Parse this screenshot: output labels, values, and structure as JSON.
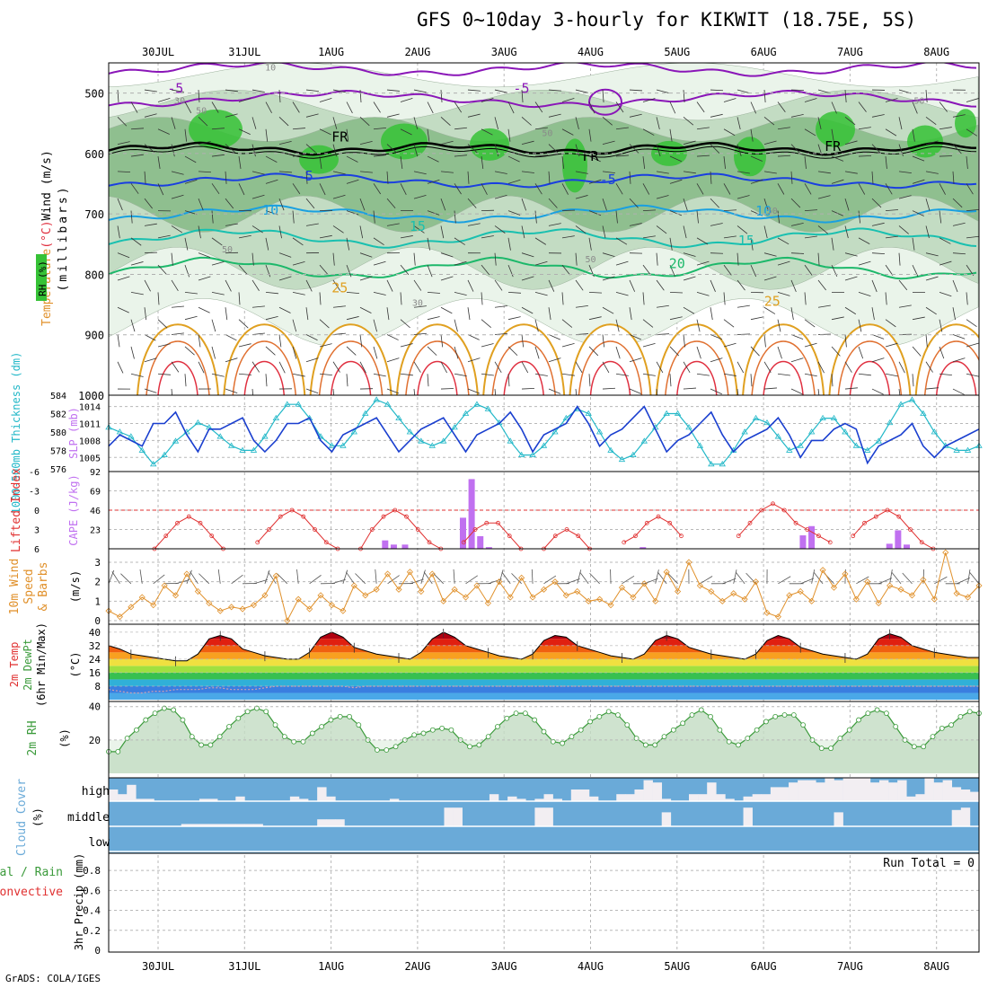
{
  "title": "GFS 0~10day 3-hourly for KIKWIT (18.75E, 5S)",
  "credit": "GrADS: COLA/IGES",
  "colors": {
    "temp_cold": "#8a16b8",
    "temp_5": "#1a3fe0",
    "temp_10": "#1aa0e0",
    "temp_15": "#19c0b0",
    "temp_20": "#1cb86a",
    "temp_25": "#e0a020",
    "temp_warm": "#e03040",
    "rh_light": "#eaf4ea",
    "rh_mid": "#c3dcc3",
    "rh_dark": "#8fbf8f",
    "rh_bright": "#36c236",
    "slp": "#1a3fcf",
    "thickness": "#22b8c8",
    "cape": "#c070f0",
    "lifted": "#e03030",
    "wind10": "#e0902a",
    "rh2m": "#3a9a3a",
    "cloud_bg": "#6aaad8",
    "cloud_bar": "#f2eef2"
  },
  "chart_data": [
    {
      "id": "pressure-panel",
      "type": "contour",
      "ylabel_parts": [
        {
          "text": "Wind (m/s)",
          "color": "#000000"
        },
        {
          "text": "(°C)",
          "color": "#e03040"
        },
        {
          "text": "Temperature",
          "color": "#e0902a"
        }
      ],
      "ylabel2": "(millibars)",
      "rh_legend": "RH (%)",
      "y_ticks": [
        500,
        600,
        700,
        800,
        900,
        1000
      ],
      "ylim": [
        1000,
        450
      ],
      "x_days": [
        "30JUL",
        "31JUL",
        "1AUG",
        "2AUG",
        "3AUG",
        "4AUG",
        "5AUG",
        "6AUG",
        "7AUG",
        "8AUG"
      ],
      "contour_labels": [
        {
          "text": "-5",
          "x": 0.2,
          "p": 500,
          "color": "temp_cold"
        },
        {
          "text": "-5",
          "x": 4.2,
          "p": 500,
          "color": "temp_cold"
        },
        {
          "text": "FR",
          "x": 2.1,
          "p": 580,
          "color": "black"
        },
        {
          "text": "FR",
          "x": 5.0,
          "p": 612,
          "color": "black"
        },
        {
          "text": "FR",
          "x": 7.8,
          "p": 596,
          "color": "black"
        },
        {
          "text": "-5",
          "x": 1.7,
          "p": 645,
          "color": "temp_5"
        },
        {
          "text": "-5",
          "x": 5.2,
          "p": 651,
          "color": "temp_5"
        },
        {
          "text": "10",
          "x": 1.3,
          "p": 701,
          "color": "temp_10"
        },
        {
          "text": "10",
          "x": 7.0,
          "p": 703,
          "color": "temp_10"
        },
        {
          "text": "15",
          "x": 3.0,
          "p": 728,
          "color": "temp_15"
        },
        {
          "text": "15",
          "x": 6.8,
          "p": 752,
          "color": "temp_15"
        },
        {
          "text": "20",
          "x": 6.0,
          "p": 790,
          "color": "temp_20"
        },
        {
          "text": "25",
          "x": 2.1,
          "p": 830,
          "color": "temp_25"
        },
        {
          "text": "25",
          "x": 7.1,
          "p": 852,
          "color": "temp_25"
        }
      ],
      "rh_labels": [
        {
          "text": "10",
          "x": 1.3,
          "p": 463
        },
        {
          "text": "30",
          "x": 0.25,
          "p": 518
        },
        {
          "text": "50",
          "x": 0.5,
          "p": 534
        },
        {
          "text": "50",
          "x": 4.5,
          "p": 571
        },
        {
          "text": "50",
          "x": 0.8,
          "p": 764
        },
        {
          "text": "50",
          "x": 5.0,
          "p": 780
        },
        {
          "text": "30",
          "x": 3.0,
          "p": 852
        },
        {
          "text": "50",
          "x": 7.1,
          "p": 700
        },
        {
          "text": "50",
          "x": 8.8,
          "p": 518
        }
      ]
    },
    {
      "id": "slp-panel",
      "type": "line",
      "ylabel_left": "1000-500mb Thickness (dm)",
      "ylabel_right": "SLP (mb)",
      "left_ticks": [
        576,
        578,
        580,
        582,
        584
      ],
      "right_ticks": [
        1005,
        1008,
        1011,
        1014
      ],
      "slp_range": [
        1002.5,
        1016
      ],
      "thick_range": [
        575.7,
        584
      ],
      "slp": [
        1007,
        1009,
        1008,
        1007,
        1011,
        1011,
        1013,
        1009,
        1006,
        1010,
        1010,
        1011,
        1012,
        1008,
        1006,
        1008,
        1011,
        1011,
        1012,
        1008,
        1006,
        1009,
        1010,
        1011,
        1012,
        1009,
        1006,
        1008,
        1010,
        1011,
        1012,
        1009,
        1006,
        1009,
        1010,
        1011,
        1013,
        1010,
        1006,
        1009,
        1010,
        1011,
        1014,
        1011,
        1007,
        1009,
        1010,
        1012,
        1014,
        1010,
        1006,
        1008,
        1009,
        1011,
        1013,
        1009,
        1006,
        1008,
        1009,
        1010,
        1012,
        1009,
        1005,
        1008,
        1008,
        1010,
        1011,
        1010,
        1004,
        1007,
        1008,
        1009,
        1011,
        1007,
        1005,
        1007,
        1008,
        1009,
        1010
      ],
      "thickness": [
        580.5,
        580,
        579.5,
        578,
        576.5,
        577.5,
        579,
        580,
        581,
        580.5,
        579.5,
        578.5,
        578,
        578,
        579.5,
        581.5,
        583,
        583,
        581.5,
        579.5,
        578.5,
        578.5,
        580,
        582,
        583.5,
        583,
        581.5,
        580,
        579,
        578.5,
        579,
        580.5,
        582,
        583,
        582.5,
        581,
        579,
        577.5,
        577.5,
        578.5,
        580,
        581.5,
        582.5,
        582,
        580,
        578,
        577,
        577.5,
        579,
        580.5,
        582,
        582,
        580.5,
        578.5,
        576.5,
        576.5,
        578,
        580,
        581.5,
        581,
        579.5,
        578,
        578.5,
        580,
        581.5,
        581.5,
        580,
        578.5,
        578,
        579,
        581,
        583,
        583.5,
        582,
        580,
        578.5,
        578,
        578,
        578.5
      ]
    },
    {
      "id": "cape-panel",
      "type": "bar",
      "ylabel_left": "Lifted Index",
      "ylabel_right": "CAPE (J/kg)",
      "li_ticks": [
        "6",
        "3",
        "0",
        "-3",
        "-6"
      ],
      "cape_ticks": [
        23,
        46,
        69,
        92
      ],
      "cape_range": [
        0,
        92
      ],
      "li_range": [
        6,
        -6
      ],
      "cape_bars": [
        {
          "x": 2.62,
          "v": 10
        },
        {
          "x": 2.72,
          "v": 5
        },
        {
          "x": 2.85,
          "v": 5
        },
        {
          "x": 3.52,
          "v": 37
        },
        {
          "x": 3.62,
          "v": 83
        },
        {
          "x": 3.72,
          "v": 15
        },
        {
          "x": 3.82,
          "v": 2
        },
        {
          "x": 5.6,
          "v": 2
        },
        {
          "x": 7.45,
          "v": 16
        },
        {
          "x": 7.55,
          "v": 27
        },
        {
          "x": 8.45,
          "v": 6
        },
        {
          "x": 8.55,
          "v": 22
        },
        {
          "x": 8.65,
          "v": 5
        }
      ],
      "lifted_index": [
        null,
        null,
        null,
        null,
        6,
        4,
        2,
        1,
        2,
        4,
        6,
        null,
        null,
        5,
        3,
        1,
        0,
        1,
        3,
        5,
        6,
        null,
        6,
        3,
        1,
        0,
        1,
        3,
        5,
        6,
        null,
        5,
        3,
        2,
        2,
        4,
        6,
        null,
        6,
        4,
        3,
        4,
        6,
        null,
        null,
        5,
        4,
        2,
        1,
        2,
        4,
        null,
        null,
        null,
        null,
        4,
        2,
        0,
        -1,
        0,
        2,
        3,
        4,
        5,
        null,
        4,
        2,
        1,
        0,
        1,
        3,
        5,
        6,
        null,
        null,
        null,
        null
      ],
      "li_dashed": 0
    },
    {
      "id": "wind-panel",
      "type": "line",
      "ylabel_parts": [
        "10m Wind",
        "Speed",
        "& Barbs"
      ],
      "ylabel_right": "(m/s)",
      "y_ticks": [
        0,
        1,
        2,
        3
      ],
      "ylim": [
        0,
        3.6
      ],
      "speed": [
        0.5,
        0.2,
        0.7,
        1.2,
        0.8,
        1.8,
        1.3,
        2.4,
        1.5,
        0.9,
        0.5,
        0.7,
        0.6,
        0.8,
        1.3,
        2.3,
        0,
        1.1,
        0.6,
        1.3,
        0.8,
        0.5,
        1.8,
        1.3,
        1.6,
        2.4,
        1.6,
        2.5,
        1.5,
        2.4,
        1.0,
        1.6,
        1.2,
        1.8,
        0.9,
        2.0,
        1.2,
        2.2,
        1.2,
        1.6,
        2.0,
        1.3,
        1.5,
        1.0,
        1.1,
        0.8,
        1.7,
        1.2,
        1.9,
        1.0,
        2.5,
        1.5,
        3.0,
        1.8,
        1.5,
        1.0,
        1.4,
        1.1,
        2.0,
        0.4,
        0.2,
        1.3,
        1.5,
        1.0,
        2.6,
        1.7,
        2.4,
        1.1,
        2.0,
        0.9,
        1.8,
        1.6,
        1.3,
        2.1,
        1.1,
        3.5,
        1.4,
        1.2,
        1.8
      ]
    },
    {
      "id": "temp2m-panel",
      "type": "area",
      "ylabel_parts": [
        "2m Temp",
        "2m DewPt",
        "(6hr Min/Max)"
      ],
      "ylabel_right": "(°C)",
      "y_ticks": [
        8,
        16,
        24,
        32,
        40
      ],
      "ylim": [
        0,
        42
      ],
      "temp": [
        32,
        30,
        27,
        26,
        25,
        24,
        23,
        23,
        27,
        36,
        38,
        36,
        30,
        28,
        26,
        25,
        24,
        24,
        28,
        37,
        40,
        37,
        31,
        29,
        27,
        26,
        25,
        24,
        28,
        36,
        40,
        37,
        32,
        30,
        28,
        26,
        25,
        24,
        27,
        35,
        38,
        37,
        32,
        30,
        28,
        26,
        25,
        24,
        27,
        35,
        38,
        36,
        31,
        29,
        27,
        26,
        25,
        24,
        27,
        35,
        38,
        36,
        31,
        29,
        27,
        26,
        25,
        24,
        27,
        36,
        39,
        37,
        32,
        30,
        28,
        27,
        26,
        25,
        25
      ],
      "dewpt": [
        6,
        5,
        4,
        4,
        5,
        5,
        6,
        6,
        6,
        7,
        7,
        6,
        6,
        6,
        7,
        8,
        8,
        8,
        8,
        8,
        8,
        8,
        7,
        8,
        8,
        8,
        8,
        8,
        8,
        8,
        8,
        8,
        8,
        8,
        8,
        8,
        8,
        8,
        8,
        8,
        8,
        8,
        8,
        8,
        8,
        8,
        8,
        8,
        8,
        8,
        8,
        8,
        8,
        8,
        8,
        8,
        8,
        8,
        8,
        8,
        8,
        8,
        8,
        8,
        8,
        8,
        8,
        8,
        8,
        8,
        8,
        8,
        8,
        8,
        8,
        8,
        8,
        8,
        8
      ]
    },
    {
      "id": "rh2m-panel",
      "type": "area",
      "ylabel": "2m RH",
      "ylabel_right": "(%)",
      "y_ticks": [
        20,
        40
      ],
      "ylim": [
        0,
        42
      ],
      "rh": [
        13,
        13,
        21,
        26,
        32,
        36,
        39,
        38,
        32,
        22,
        17,
        17,
        22,
        28,
        33,
        37,
        39,
        37,
        29,
        22,
        19,
        19,
        24,
        28,
        32,
        34,
        34,
        29,
        20,
        14,
        14,
        16,
        20,
        23,
        24,
        26,
        27,
        26,
        20,
        16,
        17,
        22,
        28,
        33,
        36,
        36,
        32,
        25,
        19,
        18,
        22,
        26,
        31,
        34,
        37,
        35,
        29,
        21,
        17,
        17,
        22,
        26,
        30,
        35,
        38,
        34,
        26,
        19,
        17,
        21,
        26,
        31,
        34,
        35,
        35,
        29,
        20,
        15,
        15,
        21,
        26,
        32,
        36,
        38,
        36,
        28,
        20,
        16,
        16,
        22,
        27,
        29,
        34,
        37,
        36
      ]
    },
    {
      "id": "cloud-panel",
      "type": "bar",
      "ylabel": "Cloud Cover",
      "ylabel_right": "(%)",
      "levels": [
        "high",
        "middle",
        "low"
      ],
      "high": [
        0.5,
        0.3,
        0.7,
        0.1,
        0.1,
        0.0,
        0.0,
        0.0,
        0.0,
        0.0,
        0.1,
        0.1,
        0.0,
        0.0,
        0.2,
        0.0,
        0.0,
        0.0,
        0.0,
        0.0,
        0.2,
        0.1,
        0.0,
        0.6,
        0.2,
        0.0,
        0.0,
        0.0,
        0.0,
        0.0,
        0.0,
        0.1,
        0.0,
        0.0,
        0.0,
        0.0,
        0.0,
        0.0,
        0.0,
        0.0,
        0.0,
        0.0,
        0.3,
        0.0,
        0.2,
        0.1,
        0.0,
        0.1,
        0.3,
        0.1,
        0.0,
        0.5,
        0.5,
        0.2,
        0.0,
        0.0,
        0.3,
        0.3,
        0.5,
        0.9,
        0.8,
        0.1,
        0.0,
        0.0,
        0.3,
        0.3,
        0.8,
        0.3,
        0.1,
        0.0,
        0.2,
        0.3,
        0.3,
        0.6,
        0.6,
        0.8,
        0.9,
        0.9,
        0.8,
        1.0,
        0.9,
        1.0,
        1.0,
        1.0,
        0.8,
        0.9,
        0.8,
        0.9,
        0.2,
        0.3,
        1.0,
        0.8,
        0.9,
        0.6,
        0.5,
        0.4
      ],
      "middle": [
        0.0,
        0.0,
        0.0,
        0.0,
        0.0,
        0.0,
        0.0,
        0.0,
        0.1,
        0.1,
        0.1,
        0.1,
        0.1,
        0.1,
        0.1,
        0.1,
        0.1,
        0.0,
        0.0,
        0.0,
        0.0,
        0.0,
        0.0,
        0.3,
        0.3,
        0.3,
        0.0,
        0.0,
        0.0,
        0.0,
        0.0,
        0.0,
        0.0,
        0.0,
        0.0,
        0.0,
        0.0,
        0.8,
        0.8,
        0.0,
        0.0,
        0.0,
        0.0,
        0.0,
        0.0,
        0.0,
        0.0,
        0.8,
        0.8,
        0.0,
        0.0,
        0.0,
        0.0,
        0.0,
        0.0,
        0.0,
        0.0,
        0.0,
        0.0,
        0.0,
        0.0,
        0.6,
        0.0,
        0.0,
        0.0,
        0.0,
        0.0,
        0.0,
        0.0,
        0.0,
        0.8,
        0.0,
        0.0,
        0.0,
        0.0,
        0.0,
        0.0,
        0.0,
        0.0,
        0.0,
        0.6,
        0.0,
        0.0,
        0.0,
        0.0,
        0.0,
        0.0,
        0.0,
        0.0,
        0.0,
        0.0,
        0.0,
        0.0,
        0.7,
        0.8,
        0.0
      ],
      "low": [
        0.0,
        0.0,
        0.0,
        0.0,
        0.0,
        0.0,
        0.0,
        0.0,
        0.0,
        0.0,
        0.0,
        0.0,
        0.0,
        0.0,
        0.0,
        0.0,
        0.0,
        0.0,
        0.0,
        0.0,
        0.0,
        0.0,
        0.0,
        0.0,
        0.0,
        0.0,
        0.0,
        0.0,
        0.0,
        0.0,
        0.0,
        0.0,
        0.0,
        0.0,
        0.0,
        0.0,
        0.0,
        0.0,
        0.0,
        0.0,
        0.0,
        0.0,
        0.0,
        0.0,
        0.0,
        0.0,
        0.0,
        0.0,
        0.0,
        0.0,
        0.0,
        0.0,
        0.0,
        0.0,
        0.0,
        0.0,
        0.0,
        0.0,
        0.0,
        0.0,
        0.0,
        0.0,
        0.0,
        0.0,
        0.0,
        0.0,
        0.0,
        0.0,
        0.0,
        0.0,
        0.0,
        0.0,
        0.0,
        0.0,
        0.0,
        0.0,
        0.0,
        0.0,
        0.0,
        0.0,
        0.0,
        0.0,
        0.0,
        0.0,
        0.0,
        0.0,
        0.0,
        0.0,
        0.0,
        0.0,
        0.0,
        0.0,
        0.0,
        0.0,
        0.0,
        0.0
      ]
    },
    {
      "id": "precip-panel",
      "type": "bar",
      "ylabel_parts": [
        {
          "text": "tal / Rain",
          "color": "#3a9a3a"
        },
        {
          "text": "Convective",
          "color": "#e03030"
        }
      ],
      "ylabel_right": "3hr Precip (mm)",
      "y_ticks": [
        "0",
        "0.2",
        "0.4",
        "0.6",
        "0.8"
      ],
      "ylim": [
        0,
        0.9
      ],
      "run_total": "Run Total = 0",
      "x_days": [
        "30JUL",
        "31JUL",
        "1AUG",
        "2AUG",
        "3AUG",
        "4AUG",
        "5AUG",
        "6AUG",
        "7AUG",
        "8AUG"
      ],
      "values": []
    }
  ]
}
